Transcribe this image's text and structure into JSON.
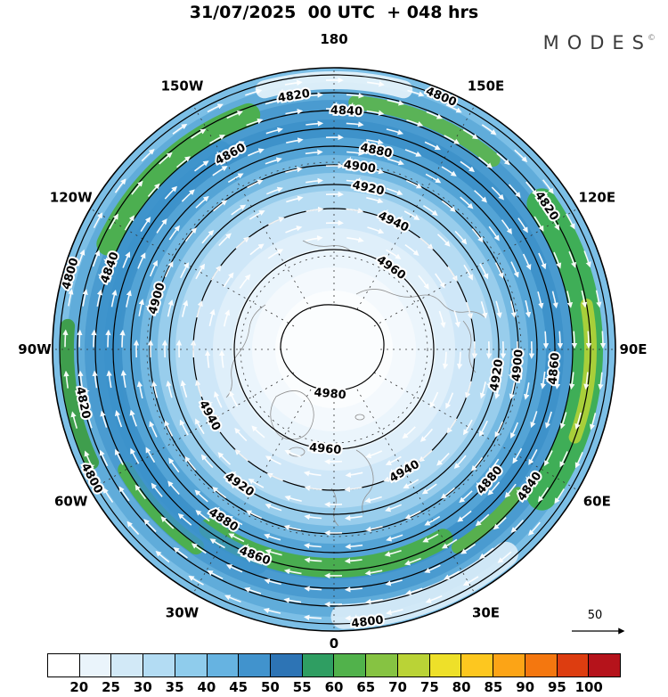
{
  "header": {
    "title": "31/07/2025  00 UTC  + 048 hrs"
  },
  "logo": {
    "text": "MODES",
    "mark": "©"
  },
  "chart_data": {
    "type": "contour-map",
    "title": "31/07/2025 00 UTC + 048 hrs",
    "projection": "north-polar-stereographic",
    "longitude_labels": [
      "180",
      "150E",
      "120E",
      "90E",
      "60E",
      "30E",
      "0",
      "30W",
      "60W",
      "90W",
      "120W",
      "150W"
    ],
    "contour_levels": [
      "4800",
      "4820",
      "4840",
      "4860",
      "4880",
      "4900",
      "4920",
      "4940",
      "4960",
      "4980"
    ],
    "contour_interval": 20,
    "colorbar": {
      "position": "bottom",
      "ticks": [
        20,
        25,
        30,
        35,
        40,
        45,
        50,
        55,
        60,
        65,
        70,
        75,
        80,
        85,
        90,
        95,
        100
      ],
      "colors": [
        "#ffffff",
        "#eaf4fb",
        "#d2e9f7",
        "#b3dcf3",
        "#8fccec",
        "#66b3e1",
        "#4193cd",
        "#2d74b5",
        "#2f9e62",
        "#51b24b",
        "#86c342",
        "#bad336",
        "#eee029",
        "#fdc71f",
        "#fca416",
        "#f4770f",
        "#dd3d10",
        "#b5131b"
      ]
    },
    "wind_scale_label": "50"
  }
}
